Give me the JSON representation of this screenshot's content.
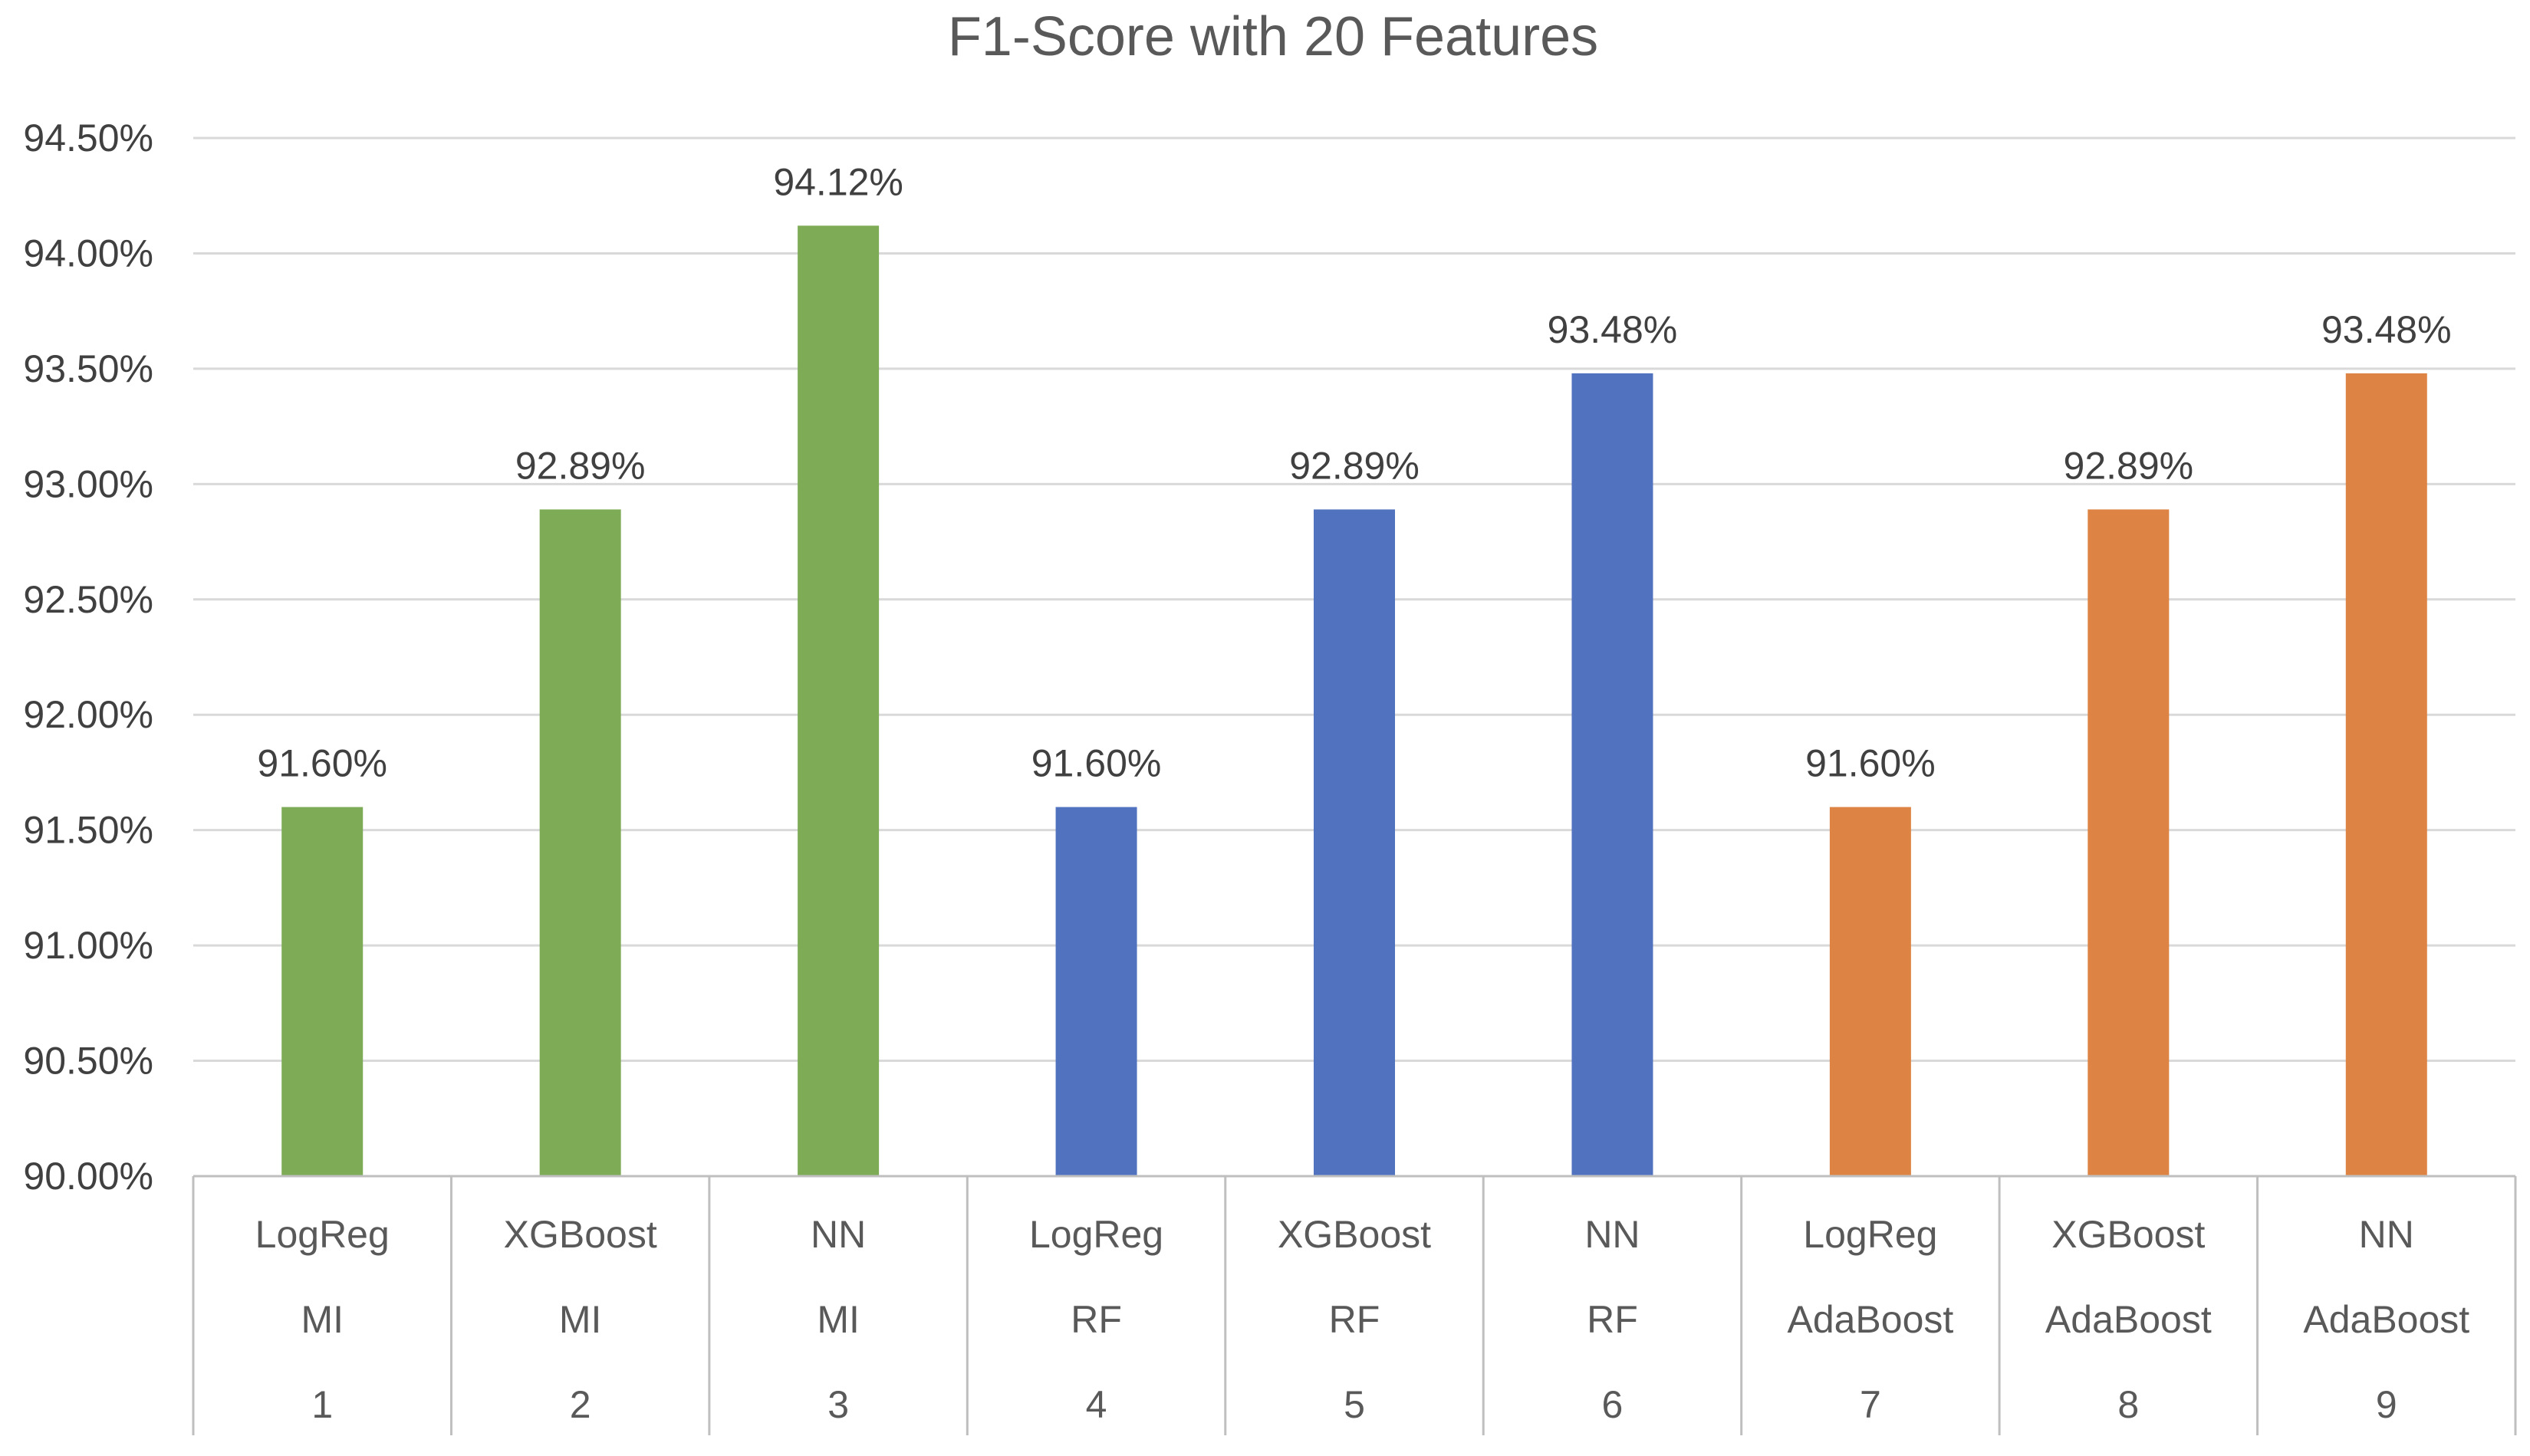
{
  "chart_data": {
    "type": "bar",
    "title": "F1-Score with 20 Features",
    "xlabel": "",
    "ylabel": "",
    "ylim": [
      90.0,
      94.5
    ],
    "ytick_step": 0.5,
    "y_tick_labels": [
      "90.00%",
      "90.50%",
      "91.00%",
      "91.50%",
      "92.00%",
      "92.50%",
      "93.00%",
      "93.50%",
      "94.00%",
      "94.50%"
    ],
    "grid": true,
    "categories": [
      [
        "LogReg",
        "MI",
        "1"
      ],
      [
        "XGBoost",
        "MI",
        "2"
      ],
      [
        "NN",
        "MI",
        "3"
      ],
      [
        "LogReg",
        "RF",
        "4"
      ],
      [
        "XGBoost",
        "RF",
        "5"
      ],
      [
        "NN",
        "RF",
        "6"
      ],
      [
        "LogReg",
        "AdaBoost",
        "7"
      ],
      [
        "XGBoost",
        "AdaBoost",
        "8"
      ],
      [
        "NN",
        "AdaBoost",
        "9"
      ]
    ],
    "values": [
      91.6,
      92.89,
      94.12,
      91.6,
      92.89,
      93.48,
      91.6,
      92.89,
      93.48
    ],
    "data_labels": [
      "91.60%",
      "92.89%",
      "94.12%",
      "91.60%",
      "92.89%",
      "93.48%",
      "91.60%",
      "92.89%",
      "93.48%"
    ],
    "colors": [
      "#7eab55",
      "#7eab55",
      "#7eab55",
      "#5173bf",
      "#5173bf",
      "#5173bf",
      "#dd8444",
      "#dd8444",
      "#dd8444"
    ],
    "grid_color": "#d9d9d9",
    "axis_color": "#bfbfbf"
  }
}
